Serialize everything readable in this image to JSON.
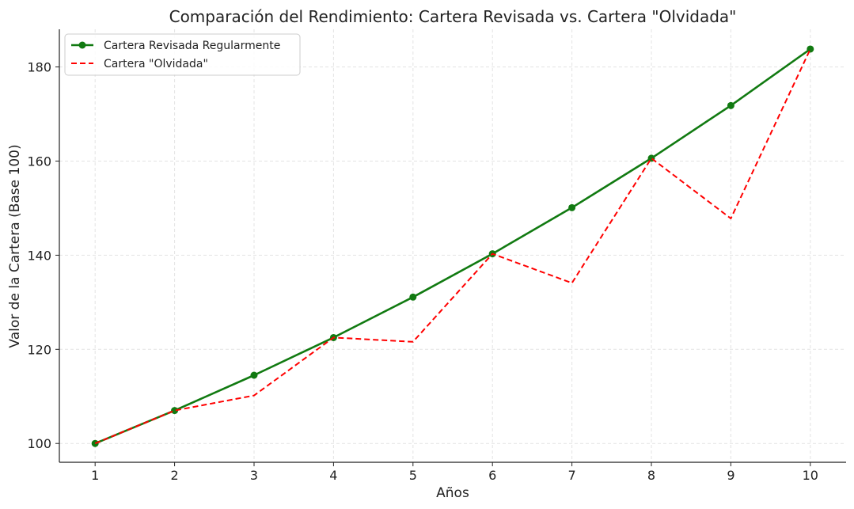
{
  "chart_data": {
    "type": "line",
    "title": "Comparación del Rendimiento: Cartera Revisada vs. Cartera \"Olvidada\"",
    "xlabel": "Años",
    "ylabel": "Valor de la Cartera (Base 100)",
    "x": [
      1,
      2,
      3,
      4,
      5,
      6,
      7,
      8,
      9,
      10
    ],
    "xlim": [
      0.55,
      10.45
    ],
    "ylim": [
      96,
      188
    ],
    "xticks": [
      1,
      2,
      3,
      4,
      5,
      6,
      7,
      8,
      9,
      10
    ],
    "yticks": [
      100,
      120,
      140,
      160,
      180
    ],
    "grid": true,
    "legend_position": "top-left",
    "series": [
      {
        "name": "Cartera Revisada Regularmente",
        "values": [
          100,
          107,
          114.5,
          122.5,
          131.1,
          140.3,
          150.1,
          160.6,
          171.8,
          183.8
        ],
        "color": "#117a11",
        "style": "solid",
        "marker": "circle"
      },
      {
        "name": "Cartera \"Olvidada\"",
        "values": [
          100,
          107,
          110.2,
          122.5,
          121.6,
          140.3,
          134.1,
          160.6,
          147.8,
          183.8
        ],
        "color": "#ff0000",
        "style": "dashed",
        "marker": "none"
      }
    ]
  }
}
